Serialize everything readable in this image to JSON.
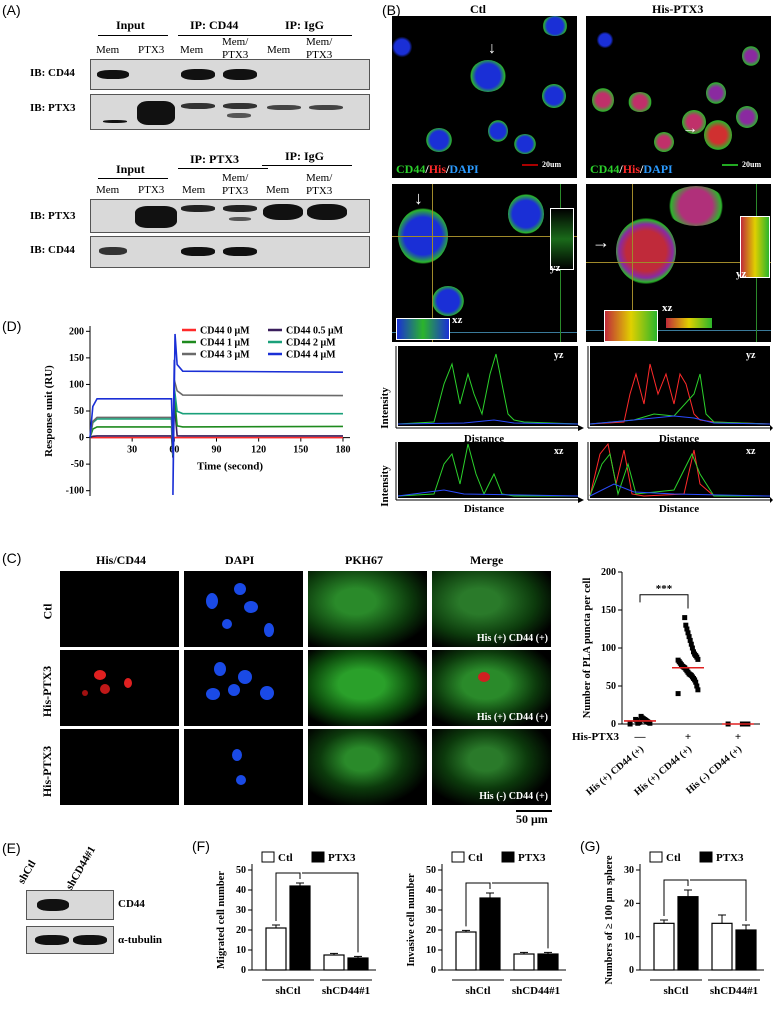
{
  "panels": {
    "A": "(A)",
    "B": "(B)",
    "C": "(C)",
    "D": "(D)",
    "E": "(E)",
    "F": "(F)",
    "G": "(G)"
  },
  "panelA": {
    "top": {
      "input": "Input",
      "ip1": "IP: CD44",
      "ip2": "IP: IgG",
      "lanes": [
        "Mem",
        "PTX3",
        "Mem",
        "Mem/\nPTX3",
        "Mem",
        "Mem/\nPTX3"
      ],
      "ib1": "IB: CD44",
      "ib2": "IB: PTX3"
    },
    "bottom": {
      "input": "Input",
      "ip1": "IP: PTX3",
      "ip2": "IP: IgG",
      "lanes": [
        "Mem",
        "PTX3",
        "Mem",
        "Mem/\nPTX3",
        "Mem",
        "Mem/\nPTX3"
      ],
      "ib1": "IB: PTX3",
      "ib2": "IB: CD44"
    }
  },
  "panelB": {
    "col1": "Ctl",
    "col2": "His-PTX3",
    "stain1": "CD44",
    "stain2": "His",
    "stain3": "DAPI",
    "scale": "20um",
    "yz": "yz",
    "xz": "xz",
    "intensity": "Intensity",
    "distance": "Distance"
  },
  "panelC": {
    "cols": [
      "His/CD44",
      "DAPI",
      "PKH67",
      "Merge"
    ],
    "rows": [
      "Ctl",
      "His-PTX3",
      "His-PTX3"
    ],
    "merge_labels": [
      "His (+) CD44 (+)",
      "His (+) CD44 (+)",
      "His (-) CD44 (+)"
    ],
    "scale": "50 μm",
    "scatter": {
      "ylabel": "Number of PLA puncta per cell",
      "yticks": [
        "0",
        "50",
        "100",
        "150",
        "200"
      ],
      "his_label": "His-PTX3",
      "his_signs": [
        "—",
        "+",
        "+"
      ],
      "groups": [
        "His (+) CD44 (+)",
        "His (+) CD44 (+)",
        "His (-) CD44 (+)"
      ],
      "sig": "***"
    }
  },
  "panelD": {
    "ylabel": "Response unit (RU)",
    "xlabel": "Time (second)",
    "legend": [
      {
        "name": "CD44  0 μM",
        "color": "#ff2a2a"
      },
      {
        "name": "CD44  0.5 μM",
        "color": "#3a1e5c"
      },
      {
        "name": "CD44  1 μM",
        "color": "#1e8a1e"
      },
      {
        "name": "CD44  2 μM",
        "color": "#1aa07a"
      },
      {
        "name": "CD44  3 μM",
        "color": "#6a6a6a"
      },
      {
        "name": "CD44  4 μM",
        "color": "#1a2fd6"
      }
    ]
  },
  "panelE": {
    "lanes": [
      "shCtl",
      "shCD44#1"
    ],
    "ib1": "CD44",
    "ib2": "α-tubulin"
  },
  "panelF": {
    "legend": [
      "Ctl",
      "PTX3"
    ],
    "chart1": {
      "ylabel": "Migrated cell number",
      "groups": [
        "shCtl",
        "shCD44#1"
      ],
      "sig": "***"
    },
    "chart2": {
      "ylabel": "Invasive cell number",
      "groups": [
        "shCtl",
        "shCD44#1"
      ],
      "sig": "***"
    }
  },
  "panelG": {
    "legend": [
      "Ctl",
      "PTX3"
    ],
    "chart": {
      "ylabel": "Numbers of ≥ 100 μm sphere",
      "groups": [
        "shCtl",
        "shCD44#1"
      ],
      "sig": "*"
    }
  },
  "chart_data": [
    {
      "id": "D",
      "type": "line",
      "xlabel": "Time (second)",
      "ylabel": "Response unit (RU)",
      "xlim": [
        0,
        185
      ],
      "ylim": [
        -110,
        210
      ],
      "xticks": [
        30,
        60,
        90,
        120,
        150,
        180
      ],
      "yticks": [
        -100,
        -50,
        0,
        50,
        100,
        150,
        200
      ],
      "series": [
        {
          "name": "CD44  0 μM",
          "values": [
            0,
            0,
            0,
            0,
            0,
            0
          ]
        },
        {
          "name": "CD44  0.5 μM",
          "values": [
            3,
            3,
            3,
            3,
            3,
            3
          ]
        },
        {
          "name": "CD44  1 μM",
          "values": [
            20,
            20,
            20,
            21,
            21,
            21
          ]
        },
        {
          "name": "CD44  2 μM",
          "values": [
            35,
            45,
            45,
            45,
            45,
            45
          ]
        },
        {
          "name": "CD44  3 μM",
          "values": [
            38,
            80,
            79,
            79,
            79,
            79
          ]
        },
        {
          "name": "CD44  4 μM",
          "values": [
            73,
            125,
            123,
            123,
            123,
            123
          ]
        }
      ],
      "x": [
        10,
        62,
        90,
        120,
        150,
        180
      ]
    },
    {
      "id": "C-scatter",
      "type": "scatter",
      "ylabel": "Number of PLA puncta per cell",
      "ylim": [
        0,
        200
      ],
      "yticks": [
        0,
        50,
        100,
        150,
        200
      ],
      "categories": [
        "His (+) CD44 (+)",
        "His (+) CD44 (+)",
        "His (-) CD44 (+)"
      ],
      "means": [
        4,
        74,
        0
      ],
      "points": [
        [
          0,
          1,
          2,
          3,
          4,
          5,
          6,
          7,
          8,
          10,
          3,
          2,
          1,
          5,
          6
        ],
        [
          40,
          45,
          50,
          55,
          58,
          60,
          62,
          64,
          65,
          66,
          68,
          70,
          72,
          74,
          75,
          76,
          78,
          80,
          82,
          84,
          85,
          88,
          90,
          92,
          95,
          100,
          105,
          110,
          115,
          120,
          125,
          130,
          140
        ],
        [
          0,
          0,
          0,
          0,
          0,
          0,
          0
        ]
      ]
    },
    {
      "id": "F1",
      "type": "bar",
      "ylabel": "Migrated cell number",
      "ylim": [
        0,
        50
      ],
      "yticks": [
        0,
        10,
        20,
        30,
        40,
        50
      ],
      "categories": [
        "shCtl",
        "shCD44#1"
      ],
      "series": [
        {
          "name": "Ctl",
          "values": [
            21,
            7.5
          ]
        },
        {
          "name": "PTX3",
          "values": [
            42,
            6
          ]
        }
      ],
      "errors": [
        {
          "name": "Ctl",
          "values": [
            1.5,
            0.8
          ]
        },
        {
          "name": "PTX3",
          "values": [
            1.5,
            0.8
          ]
        }
      ]
    },
    {
      "id": "F2",
      "type": "bar",
      "ylabel": "Invasive cell number",
      "ylim": [
        0,
        50
      ],
      "yticks": [
        0,
        10,
        20,
        30,
        40,
        50
      ],
      "categories": [
        "shCtl",
        "shCD44#1"
      ],
      "series": [
        {
          "name": "Ctl",
          "values": [
            19,
            8
          ]
        },
        {
          "name": "PTX3",
          "values": [
            36,
            8
          ]
        }
      ],
      "errors": [
        {
          "name": "Ctl",
          "values": [
            0.8,
            0.8
          ]
        },
        {
          "name": "PTX3",
          "values": [
            2.5,
            0.8
          ]
        }
      ]
    },
    {
      "id": "G",
      "type": "bar",
      "ylabel": "Numbers of ≥ 100 μm sphere",
      "ylim": [
        0,
        30
      ],
      "yticks": [
        0,
        10,
        20,
        30
      ],
      "categories": [
        "shCtl",
        "shCD44#1"
      ],
      "series": [
        {
          "name": "Ctl",
          "values": [
            14,
            14
          ]
        },
        {
          "name": "PTX3",
          "values": [
            22,
            12
          ]
        }
      ],
      "errors": [
        {
          "name": "Ctl",
          "values": [
            1,
            2.5
          ]
        },
        {
          "name": "PTX3",
          "values": [
            2,
            1.5
          ]
        }
      ]
    }
  ]
}
